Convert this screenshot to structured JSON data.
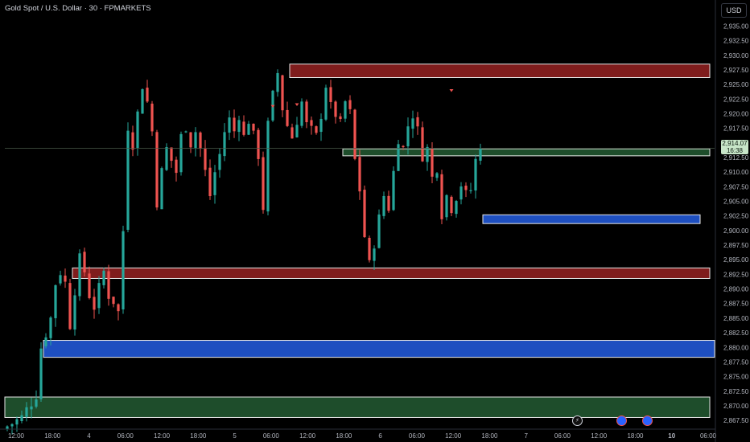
{
  "header": {
    "title": "Gold Spot / U.S. Dollar · 30 · FPMARKETS",
    "currency": "USD"
  },
  "last_price": {
    "value": "2,914.07",
    "countdown": "16:38"
  },
  "events": [
    {
      "name": "flash-event-icon",
      "glyph": "⚡"
    },
    {
      "name": "us-event-icon",
      "glyph": ""
    },
    {
      "name": "us-event-icon",
      "glyph": ""
    }
  ],
  "colors": {
    "bull": "#26a69a",
    "bear": "#ef5350",
    "supply_zone": "#7f1d1d",
    "demand_zone": "#1e4d2b",
    "blue_zone": "#1e4fc0",
    "last_price_line": "#c8e6c9"
  },
  "chart_data": {
    "type": "candlestick",
    "title": "Gold Spot / U.S. Dollar · 30 · FPMARKETS",
    "ylabel": "USD",
    "ylim": [
      2866,
      2937
    ],
    "y_ticks": [
      "2,867.50",
      "2,870.00",
      "2,872.50",
      "2,875.00",
      "2,877.50",
      "2,880.00",
      "2,882.50",
      "2,885.00",
      "2,887.50",
      "2,890.00",
      "2,892.50",
      "2,895.00",
      "2,897.50",
      "2,900.00",
      "2,902.50",
      "2,905.00",
      "2,907.50",
      "2,910.00",
      "2,912.50",
      "2,915.00",
      "2,917.50",
      "2,920.00",
      "2,922.50",
      "2,925.00",
      "2,927.50",
      "2,930.00",
      "2,932.50",
      "2,935.00"
    ],
    "x_ticks": [
      "12:00",
      "18:00",
      "4",
      "06:00",
      "12:00",
      "18:00",
      "5",
      "06:00",
      "12:00",
      "18:00",
      "6",
      "06:00",
      "12:00",
      "18:00",
      "7",
      "06:00",
      "12:00",
      "18:00",
      "10",
      "06:00"
    ],
    "price_path": [
      [
        0,
        2866.5
      ],
      [
        3,
        2868
      ],
      [
        6,
        2872
      ],
      [
        7,
        2880
      ],
      [
        9,
        2885
      ],
      [
        10,
        2891
      ],
      [
        11,
        2893
      ],
      [
        12,
        2891
      ],
      [
        13,
        2884
      ],
      [
        14,
        2890
      ],
      [
        15,
        2895
      ],
      [
        16,
        2893
      ],
      [
        17,
        2889
      ],
      [
        18,
        2887
      ],
      [
        19,
        2890
      ],
      [
        20,
        2893
      ],
      [
        21,
        2889
      ],
      [
        22,
        2888
      ],
      [
        23,
        2886
      ],
      [
        24,
        2900
      ],
      [
        25,
        2918
      ],
      [
        26,
        2915
      ],
      [
        27,
        2920
      ],
      [
        28,
        2925
      ],
      [
        29,
        2922
      ],
      [
        30,
        2917
      ],
      [
        31,
        2905
      ],
      [
        32,
        2910
      ],
      [
        33,
        2914
      ],
      [
        34,
        2912
      ],
      [
        35,
        2910
      ],
      [
        36,
        2916
      ],
      [
        37,
        2918
      ],
      [
        38,
        2915
      ],
      [
        39,
        2917
      ],
      [
        40,
        2914
      ],
      [
        41,
        2910
      ],
      [
        42,
        2906
      ],
      [
        43,
        2910
      ],
      [
        44,
        2913
      ],
      [
        45,
        2917
      ],
      [
        46,
        2919
      ],
      [
        47,
        2917
      ],
      [
        48,
        2920
      ],
      [
        49,
        2916
      ],
      [
        50,
        2919
      ],
      [
        51,
        2916
      ],
      [
        52,
        2913
      ],
      [
        53,
        2904
      ],
      [
        54,
        2918
      ],
      [
        55,
        2923
      ],
      [
        56,
        2927
      ],
      [
        57,
        2921
      ],
      [
        58,
        2918
      ],
      [
        59,
        2916
      ],
      [
        60,
        2919
      ],
      [
        61,
        2922
      ],
      [
        62,
        2918
      ],
      [
        63,
        2917
      ],
      [
        64,
        2916
      ],
      [
        65,
        2920
      ],
      [
        66,
        2925
      ],
      [
        67,
        2921
      ],
      [
        68,
        2920
      ],
      [
        69,
        2918
      ],
      [
        70,
        2922
      ],
      [
        71,
        2920
      ],
      [
        72,
        2912
      ],
      [
        73,
        2907
      ],
      [
        74,
        2899
      ],
      [
        75,
        2894
      ],
      [
        76,
        2898
      ],
      [
        77,
        2902
      ],
      [
        78,
        2906
      ],
      [
        79,
        2904
      ],
      [
        80,
        2910
      ],
      [
        81,
        2916
      ],
      [
        82,
        2914
      ],
      [
        83,
        2918
      ],
      [
        84,
        2920
      ],
      [
        85,
        2917
      ],
      [
        86,
        2913
      ],
      [
        87,
        2914
      ],
      [
        88,
        2909
      ],
      [
        89,
        2911
      ],
      [
        90,
        2903
      ],
      [
        91,
        2906
      ],
      [
        92,
        2904
      ],
      [
        93,
        2906
      ],
      [
        94,
        2908
      ],
      [
        95,
        2906
      ],
      [
        96,
        2907
      ],
      [
        97,
        2912
      ],
      [
        98,
        2914.07
      ]
    ],
    "zones": [
      {
        "kind": "supply",
        "top": 2928.5,
        "bottom": 2926.2,
        "start_x": 59,
        "end_x": 146
      },
      {
        "kind": "demand",
        "top": 2914.0,
        "bottom": 2912.8,
        "start_x": 70,
        "end_x": 146
      },
      {
        "kind": "blue",
        "top": 2902.7,
        "bottom": 2901.2,
        "start_x": 99,
        "end_x": 144
      },
      {
        "kind": "supply",
        "top": 2893.6,
        "bottom": 2891.8,
        "start_x": 14,
        "end_x": 146
      },
      {
        "kind": "blue",
        "top": 2881.2,
        "bottom": 2878.3,
        "start_x": 8,
        "end_x": 147
      },
      {
        "kind": "demand",
        "top": 2871.5,
        "bottom": 2868.0,
        "start_x": 0,
        "end_x": 146
      }
    ],
    "markers": [
      {
        "kind": "down-triangle",
        "x_index": 60,
        "price": 2921.8
      },
      {
        "kind": "down-triangle",
        "x_index": 92,
        "price": 2924.2
      },
      {
        "kind": "down-triangle",
        "x_index": 55,
        "price": 2921.5
      }
    ],
    "last_price": 2914.07,
    "grid": false,
    "legend": "none"
  }
}
